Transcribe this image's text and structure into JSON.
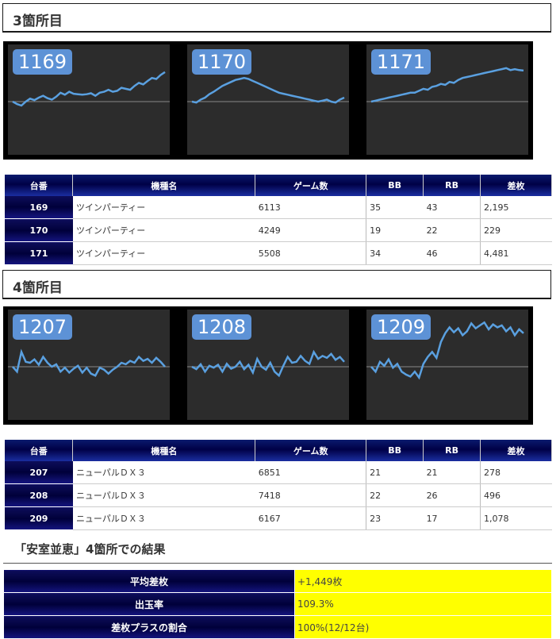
{
  "sections": [
    {
      "title": "3箇所目",
      "graphs": [
        {
          "label": "1169",
          "series": [
            40,
            35,
            32,
            40,
            46,
            43,
            48,
            52,
            47,
            44,
            50,
            58,
            54,
            60,
            56,
            55,
            54,
            55,
            57,
            52,
            58,
            60,
            64,
            60,
            62,
            68,
            66,
            64,
            72,
            78,
            75,
            82,
            88,
            86,
            94,
            100
          ]
        },
        {
          "label": "1170",
          "series": [
            40,
            38,
            44,
            48,
            55,
            60,
            66,
            72,
            76,
            80,
            84,
            86,
            88,
            86,
            82,
            78,
            74,
            70,
            66,
            62,
            58,
            56,
            54,
            52,
            50,
            48,
            46,
            44,
            42,
            40,
            42,
            44,
            40,
            38,
            44,
            48
          ]
        },
        {
          "label": "1171",
          "series": [
            40,
            42,
            44,
            46,
            48,
            50,
            52,
            54,
            56,
            58,
            58,
            62,
            66,
            64,
            70,
            72,
            76,
            74,
            80,
            78,
            84,
            88,
            90,
            92,
            94,
            96,
            98,
            100,
            102,
            104,
            106,
            108,
            104,
            106,
            104,
            103
          ]
        }
      ]
    },
    {
      "title": "4箇所目",
      "graphs": [
        {
          "label": "1207",
          "series": [
            40,
            30,
            70,
            50,
            48,
            55,
            44,
            60,
            48,
            40,
            45,
            30,
            38,
            28,
            36,
            42,
            28,
            38,
            26,
            22,
            38,
            34,
            26,
            34,
            40,
            48,
            45,
            52,
            48,
            60,
            52,
            56,
            48,
            58,
            50,
            40
          ]
        },
        {
          "label": "1208",
          "series": [
            40,
            35,
            45,
            30,
            42,
            38,
            44,
            30,
            46,
            36,
            40,
            50,
            35,
            44,
            28,
            56,
            40,
            34,
            48,
            30,
            22,
            42,
            60,
            48,
            50,
            62,
            52,
            46,
            70,
            56,
            62,
            58,
            66,
            54,
            60,
            50
          ]
        },
        {
          "label": "1209",
          "series": [
            40,
            30,
            50,
            42,
            55,
            38,
            46,
            30,
            24,
            20,
            30,
            18,
            46,
            60,
            70,
            58,
            90,
            108,
            120,
            110,
            118,
            104,
            112,
            128,
            118,
            124,
            130,
            116,
            126,
            120,
            124,
            112,
            120,
            104,
            116,
            108
          ]
        }
      ]
    }
  ],
  "table_headers": [
    "台番",
    "機種名",
    "ゲーム数",
    "BB",
    "RB",
    "差枚"
  ],
  "tables": [
    {
      "rows": [
        {
          "num": "169",
          "name": "ツインパーティー",
          "games": "6113",
          "bb": "35",
          "rb": "43",
          "diff": "2,195"
        },
        {
          "num": "170",
          "name": "ツインパーティー",
          "games": "4249",
          "bb": "19",
          "rb": "22",
          "diff": "229"
        },
        {
          "num": "171",
          "name": "ツインパーティー",
          "games": "5508",
          "bb": "34",
          "rb": "46",
          "diff": "4,481"
        }
      ]
    },
    {
      "rows": [
        {
          "num": "207",
          "name": "ニューパルＤＸ３",
          "games": "6851",
          "bb": "21",
          "rb": "21",
          "diff": "278"
        },
        {
          "num": "208",
          "name": "ニューパルＤＸ３",
          "games": "7418",
          "bb": "22",
          "rb": "26",
          "diff": "496"
        },
        {
          "num": "209",
          "name": "ニューパルＤＸ３",
          "games": "6167",
          "bb": "23",
          "rb": "17",
          "diff": "1,078"
        }
      ]
    }
  ],
  "result": {
    "title": "「安室並恵」4箇所での結果",
    "rows": [
      {
        "label": "平均差枚",
        "value": "+1,449枚"
      },
      {
        "label": "出玉率",
        "value": "109.3%"
      },
      {
        "label": "差枚プラスの割合",
        "value": "100%(12/12台)"
      }
    ]
  },
  "colors": {
    "graph_line": "#5aa0e0",
    "badge": "#5d92d6",
    "header_navy": "#000046",
    "highlight": "#ffff00"
  }
}
